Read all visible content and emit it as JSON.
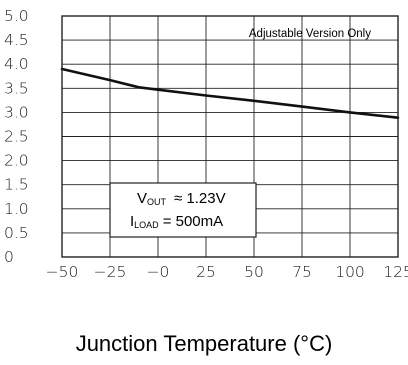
{
  "chart_data": {
    "type": "line",
    "title": "",
    "xlabel": "Junction Temperature (°C)",
    "ylabel": "",
    "xlim": [
      -50,
      125
    ],
    "ylim": [
      0,
      5.0
    ],
    "x_ticks": [
      -50,
      -25,
      0,
      25,
      50,
      75,
      100,
      125
    ],
    "x_tick_labels": [
      "−50",
      "−25",
      "−0",
      "25",
      "50",
      "75",
      "100",
      "125"
    ],
    "y_ticks": [
      0,
      0.5,
      1.0,
      1.5,
      2.0,
      2.5,
      3.0,
      3.5,
      4.0,
      4.5,
      5.0
    ],
    "y_tick_labels": [
      "0",
      "0.5",
      "1.0",
      "1.5",
      "2.0",
      "2.5",
      "3.0",
      "3.5",
      "4.0",
      "4.5",
      "5.0"
    ],
    "grid": true,
    "annotation": "Adjustable Version Only",
    "conditions": {
      "vout_main": "V",
      "vout_sub": "OUT",
      "vout_value": "≈ 1.23V",
      "iload_main": "I",
      "iload_sub": "LOAD",
      "iload_value": "= 500mA"
    },
    "series": [
      {
        "x": [
          -50,
          -25,
          -10,
          0,
          25,
          50,
          75,
          100,
          125
        ],
        "y": [
          3.9,
          3.67,
          3.52,
          3.47,
          3.35,
          3.24,
          3.12,
          3.0,
          2.89
        ]
      }
    ],
    "line_color": "#111111",
    "grid_color": "#222222"
  }
}
